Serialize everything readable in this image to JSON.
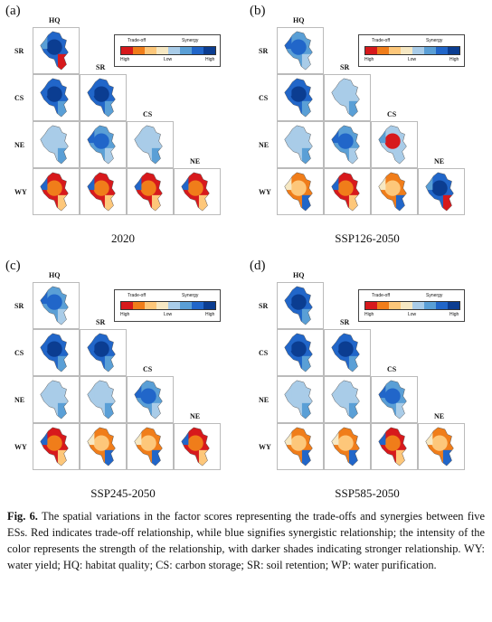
{
  "panels": [
    {
      "id": "a",
      "label": "(a)",
      "title": "2020",
      "cells": [
        [
          "r3",
          "b3",
          "n",
          "n"
        ],
        [
          "b3",
          "b3",
          "n",
          "n"
        ],
        [
          "b1",
          "b2",
          "b1",
          "n"
        ],
        [
          "w",
          "w",
          "w",
          "w"
        ]
      ]
    },
    {
      "id": "b",
      "label": "(b)",
      "title": "SSP126-2050",
      "cells": [
        [
          "b2",
          "n",
          "n",
          "n"
        ],
        [
          "b3",
          "b1",
          "n",
          "n"
        ],
        [
          "b1",
          "b2",
          "r2",
          "n"
        ],
        [
          "o",
          "w",
          "o",
          "r3"
        ]
      ]
    },
    {
      "id": "c",
      "label": "(c)",
      "title": "SSP245-2050",
      "cells": [
        [
          "b2",
          "n",
          "n",
          "n"
        ],
        [
          "b3",
          "b3",
          "n",
          "n"
        ],
        [
          "b1",
          "b1",
          "b2",
          "n"
        ],
        [
          "w",
          "o",
          "o",
          "w"
        ]
      ]
    },
    {
      "id": "d",
      "label": "(d)",
      "title": "SSP585-2050",
      "cells": [
        [
          "b3",
          "n",
          "n",
          "n"
        ],
        [
          "b3",
          "b3",
          "n",
          "n"
        ],
        [
          "b1",
          "b1",
          "b2",
          "n"
        ],
        [
          "o",
          "o",
          "w",
          "o"
        ]
      ]
    }
  ],
  "columns": [
    "HQ",
    "SR",
    "CS",
    "NE"
  ],
  "rows": [
    "SR",
    "CS",
    "NE",
    "WY"
  ],
  "legend": {
    "tradeoff": "Trade-off",
    "synergy": "Synergy",
    "high_left": "High",
    "low": "Low",
    "high_right": "High",
    "colors": [
      "#d7191c",
      "#f07d1a",
      "#fdc77a",
      "#f6e8c3",
      "#a9cce8",
      "#5a9fd6",
      "#2166c9",
      "#0b3d91"
    ]
  },
  "caption": {
    "fig": "Fig. 6.",
    "text": " The spatial variations in the factor scores representing the trade-offs and synergies between five ESs. Red indicates trade-off relationship, while blue signifies synergistic relationship; the intensity of the color represents the strength of the relationship, with darker shades indicating stronger relationship. WY: water yield; HQ: habitat quality; CS: carbon storage; SR: soil retention; WP: water purification."
  },
  "palettes": {
    "b1": [
      "#a9cce8",
      "#a9cce8",
      "#5a9fd6",
      "#a9cce8"
    ],
    "b2": [
      "#5a9fd6",
      "#2166c9",
      "#a9cce8",
      "#2166c9"
    ],
    "b3": [
      "#2166c9",
      "#0b3d91",
      "#5a9fd6",
      "#2166c9"
    ],
    "r2": [
      "#a9cce8",
      "#d7191c",
      "#a9cce8",
      "#5a9fd6"
    ],
    "r3": [
      "#2166c9",
      "#0b3d91",
      "#d7191c",
      "#5a9fd6"
    ],
    "o": [
      "#f07d1a",
      "#fdc77a",
      "#2166c9",
      "#f6e8c3"
    ],
    "w": [
      "#d7191c",
      "#f07d1a",
      "#fdc77a",
      "#2166c9"
    ]
  }
}
